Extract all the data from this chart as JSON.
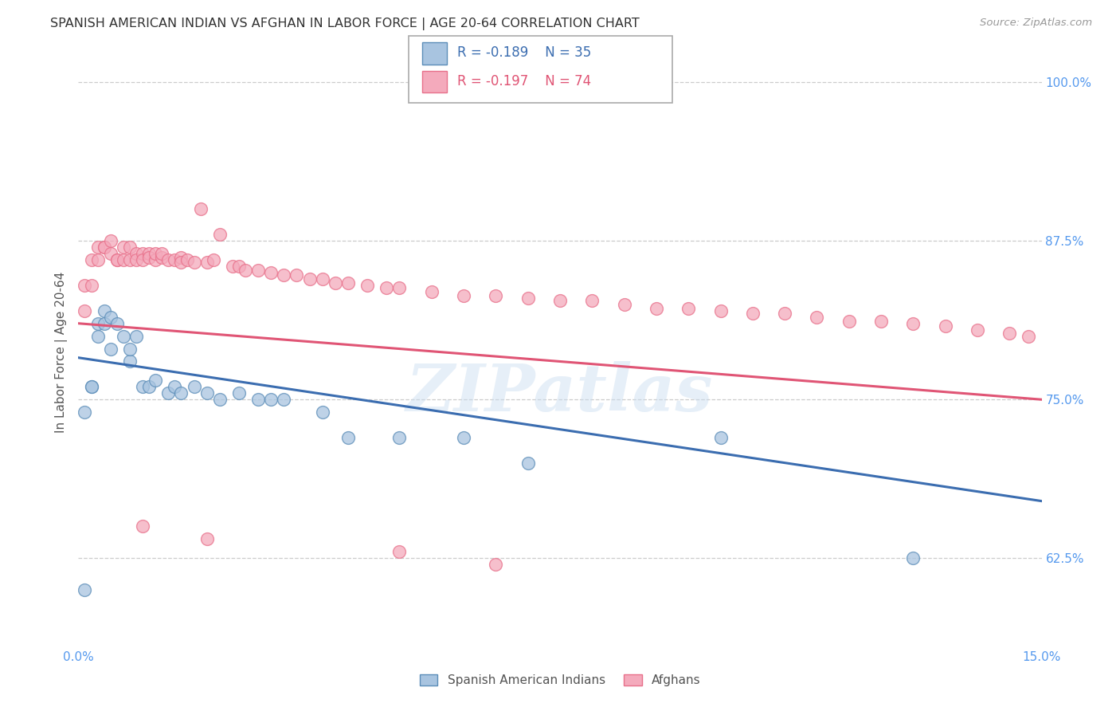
{
  "title": "SPANISH AMERICAN INDIAN VS AFGHAN IN LABOR FORCE | AGE 20-64 CORRELATION CHART",
  "source": "Source: ZipAtlas.com",
  "ylabel": "In Labor Force | Age 20-64",
  "xlim": [
    0.0,
    0.15
  ],
  "ylim": [
    0.555,
    1.02
  ],
  "yticks": [
    0.625,
    0.75,
    0.875,
    1.0
  ],
  "yticklabels_right": [
    "62.5%",
    "75.0%",
    "87.5%",
    "100.0%"
  ],
  "blue_color": "#A8C4E0",
  "pink_color": "#F4AABC",
  "blue_edge_color": "#5B8DB8",
  "pink_edge_color": "#E8708A",
  "blue_line_color": "#3B6DB0",
  "pink_line_color": "#E05575",
  "watermark": "ZIPatlas",
  "legend_r_blue": "-0.189",
  "legend_n_blue": "35",
  "legend_r_pink": "-0.197",
  "legend_n_pink": "74",
  "legend_label_blue": "Spanish American Indians",
  "legend_label_pink": "Afghans",
  "blue_scatter_x": [
    0.001,
    0.001,
    0.002,
    0.002,
    0.003,
    0.003,
    0.004,
    0.004,
    0.005,
    0.005,
    0.006,
    0.007,
    0.008,
    0.008,
    0.009,
    0.01,
    0.011,
    0.012,
    0.014,
    0.015,
    0.016,
    0.018,
    0.02,
    0.022,
    0.025,
    0.028,
    0.03,
    0.032,
    0.038,
    0.042,
    0.05,
    0.06,
    0.07,
    0.1,
    0.13
  ],
  "blue_scatter_y": [
    0.6,
    0.74,
    0.76,
    0.76,
    0.8,
    0.81,
    0.81,
    0.82,
    0.815,
    0.79,
    0.81,
    0.8,
    0.78,
    0.79,
    0.8,
    0.76,
    0.76,
    0.765,
    0.755,
    0.76,
    0.755,
    0.76,
    0.755,
    0.75,
    0.755,
    0.75,
    0.75,
    0.75,
    0.74,
    0.72,
    0.72,
    0.72,
    0.7,
    0.72,
    0.625
  ],
  "pink_scatter_x": [
    0.001,
    0.001,
    0.002,
    0.002,
    0.003,
    0.003,
    0.004,
    0.004,
    0.005,
    0.005,
    0.006,
    0.006,
    0.007,
    0.007,
    0.008,
    0.008,
    0.009,
    0.009,
    0.01,
    0.01,
    0.011,
    0.011,
    0.012,
    0.012,
    0.013,
    0.013,
    0.014,
    0.015,
    0.016,
    0.016,
    0.017,
    0.018,
    0.019,
    0.02,
    0.021,
    0.022,
    0.024,
    0.025,
    0.026,
    0.028,
    0.03,
    0.032,
    0.034,
    0.036,
    0.038,
    0.04,
    0.042,
    0.045,
    0.048,
    0.05,
    0.055,
    0.06,
    0.065,
    0.07,
    0.075,
    0.08,
    0.085,
    0.09,
    0.095,
    0.1,
    0.105,
    0.11,
    0.115,
    0.12,
    0.125,
    0.13,
    0.135,
    0.14,
    0.145,
    0.148,
    0.01,
    0.02,
    0.05,
    0.065
  ],
  "pink_scatter_y": [
    0.82,
    0.84,
    0.84,
    0.86,
    0.86,
    0.87,
    0.87,
    0.87,
    0.875,
    0.865,
    0.86,
    0.86,
    0.87,
    0.86,
    0.86,
    0.87,
    0.865,
    0.86,
    0.865,
    0.86,
    0.865,
    0.862,
    0.86,
    0.865,
    0.862,
    0.865,
    0.86,
    0.86,
    0.862,
    0.858,
    0.86,
    0.858,
    0.9,
    0.858,
    0.86,
    0.88,
    0.855,
    0.855,
    0.852,
    0.852,
    0.85,
    0.848,
    0.848,
    0.845,
    0.845,
    0.842,
    0.842,
    0.84,
    0.838,
    0.838,
    0.835,
    0.832,
    0.832,
    0.83,
    0.828,
    0.828,
    0.825,
    0.822,
    0.822,
    0.82,
    0.818,
    0.818,
    0.815,
    0.812,
    0.812,
    0.81,
    0.808,
    0.805,
    0.802,
    0.8,
    0.65,
    0.64,
    0.63,
    0.62
  ],
  "blue_line_x0": 0.0,
  "blue_line_x1": 0.15,
  "blue_line_y0": 0.783,
  "blue_line_y1": 0.67,
  "pink_line_x0": 0.0,
  "pink_line_x1": 0.15,
  "pink_line_y0": 0.81,
  "pink_line_y1": 0.75,
  "grid_color": "#CCCCCC",
  "background_color": "#FFFFFF",
  "title_fontsize": 11.5,
  "axis_label_fontsize": 11,
  "tick_fontsize": 11,
  "source_fontsize": 9.5
}
